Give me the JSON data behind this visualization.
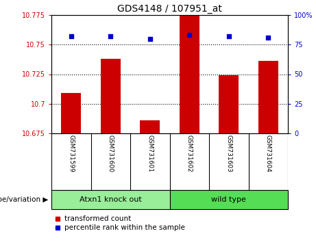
{
  "title": "GDS4148 / 107951_at",
  "samples": [
    "GSM731599",
    "GSM731600",
    "GSM731601",
    "GSM731602",
    "GSM731603",
    "GSM731604"
  ],
  "bar_values": [
    10.709,
    10.738,
    10.686,
    10.775,
    10.724,
    10.736
  ],
  "percentile_values": [
    82,
    82,
    80,
    83,
    82,
    81
  ],
  "bar_color": "#cc0000",
  "percentile_color": "#0000cc",
  "ylim_left": [
    10.675,
    10.775
  ],
  "ylim_right": [
    0,
    100
  ],
  "yticks_left": [
    10.675,
    10.7,
    10.725,
    10.75,
    10.775
  ],
  "yticks_right": [
    0,
    25,
    50,
    75,
    100
  ],
  "ytick_labels_left": [
    "10.675",
    "10.7",
    "10.725",
    "10.75",
    "10.775"
  ],
  "ytick_labels_right": [
    "0",
    "25",
    "50",
    "75",
    "100%"
  ],
  "grid_values": [
    10.75,
    10.725,
    10.7
  ],
  "groups": [
    {
      "label": "Atxn1 knock out",
      "indices": [
        0,
        1,
        2
      ],
      "color": "#99ee99"
    },
    {
      "label": "wild type",
      "indices": [
        3,
        4,
        5
      ],
      "color": "#55dd55"
    }
  ],
  "group_label": "genotype/variation",
  "legend_items": [
    {
      "label": "transformed count",
      "color": "#cc0000"
    },
    {
      "label": "percentile rank within the sample",
      "color": "#0000cc"
    }
  ],
  "bar_width": 0.5,
  "base_value": 10.675,
  "tick_label_color_left": "#cc0000",
  "tick_label_color_right": "#0000cc",
  "bg_color_plot": "#ffffff",
  "bg_color_fig": "#ffffff",
  "sample_box_color": "#cccccc",
  "n_samples": 6
}
